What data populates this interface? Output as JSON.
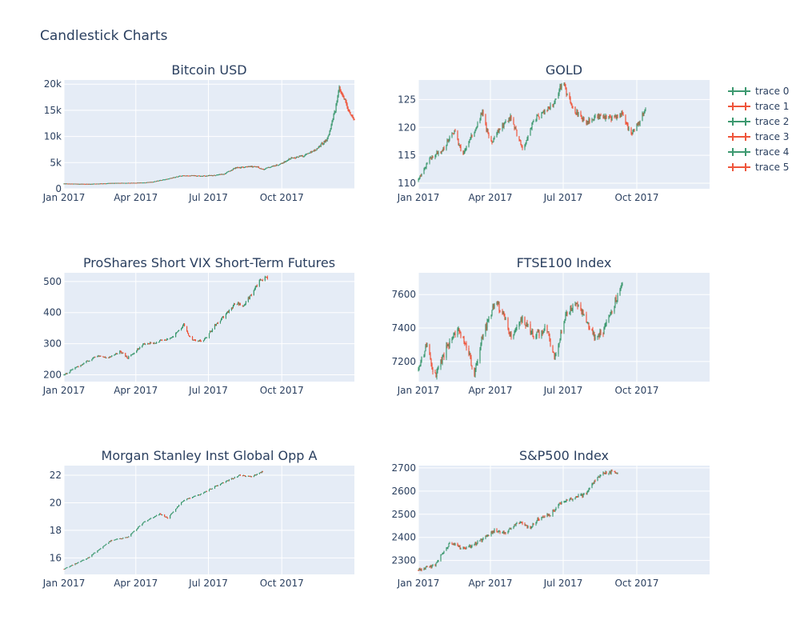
{
  "page": {
    "title": "Candlestick Charts"
  },
  "colors": {
    "increasing": "#3d9970",
    "decreasing": "#ef553b",
    "panel": "#e5ecf6",
    "text": "#2a3f5f"
  },
  "legend": {
    "position": "right",
    "items": [
      "trace 0",
      "trace 1",
      "trace 2",
      "trace 3",
      "trace 4",
      "trace 5"
    ]
  },
  "chart_data": [
    {
      "type": "candlestick",
      "title": "Bitcoin USD",
      "grid": true,
      "xticks": [
        "Jan 2017",
        "Apr 2017",
        "Jul 2017",
        "Oct 2017"
      ],
      "yticks": [
        "0",
        "5k",
        "10k",
        "15k",
        "20k"
      ],
      "ytick_values": [
        0,
        5000,
        10000,
        15000,
        20000
      ],
      "ylim": [
        0,
        20800
      ],
      "anchors": [
        [
          0,
          1000
        ],
        [
          30,
          920
        ],
        [
          60,
          1100
        ],
        [
          90,
          1150
        ],
        [
          110,
          1300
        ],
        [
          130,
          1900
        ],
        [
          150,
          2600
        ],
        [
          165,
          2500
        ],
        [
          180,
          2500
        ],
        [
          200,
          2800
        ],
        [
          215,
          4000
        ],
        [
          240,
          4300
        ],
        [
          250,
          3700
        ],
        [
          260,
          4300
        ],
        [
          270,
          4600
        ],
        [
          285,
          5900
        ],
        [
          300,
          6300
        ],
        [
          315,
          7500
        ],
        [
          330,
          9500
        ],
        [
          340,
          15000
        ],
        [
          345,
          19000
        ],
        [
          350,
          17500
        ],
        [
          360,
          13800
        ],
        [
          364,
          13400
        ]
      ],
      "volatility": 0.03
    },
    {
      "type": "candlestick",
      "title": "GOLD",
      "grid": true,
      "xticks": [
        "Jan 2017",
        "Apr 2017",
        "Jul 2017",
        "Oct 2017"
      ],
      "yticks": [
        "110",
        "115",
        "120",
        "125"
      ],
      "ytick_values": [
        110,
        115,
        120,
        125
      ],
      "ylim": [
        109,
        128.5
      ],
      "anchors": [
        [
          0,
          110.5
        ],
        [
          15,
          114.5
        ],
        [
          30,
          116
        ],
        [
          45,
          119.5
        ],
        [
          55,
          115
        ],
        [
          65,
          118
        ],
        [
          80,
          122.5
        ],
        [
          90,
          117
        ],
        [
          100,
          119.5
        ],
        [
          115,
          122
        ],
        [
          130,
          116
        ],
        [
          145,
          121.5
        ],
        [
          160,
          123
        ],
        [
          170,
          124.5
        ],
        [
          180,
          128
        ],
        [
          195,
          123
        ],
        [
          210,
          121
        ],
        [
          225,
          122
        ],
        [
          240,
          121.5
        ],
        [
          255,
          122.5
        ],
        [
          265,
          119
        ],
        [
          275,
          120.5
        ],
        [
          285,
          124
        ]
      ],
      "volatility": 0.004
    },
    {
      "type": "candlestick",
      "title": "ProShares Short VIX Short-Term Futures",
      "grid": true,
      "xticks": [
        "Jan 2017",
        "Apr 2017",
        "Jul 2017",
        "Oct 2017"
      ],
      "yticks": [
        "200",
        "300",
        "400",
        "500"
      ],
      "ytick_values": [
        200,
        300,
        400,
        500
      ],
      "ylim": [
        178,
        528
      ],
      "anchors": [
        [
          0,
          200
        ],
        [
          20,
          230
        ],
        [
          40,
          260
        ],
        [
          55,
          255
        ],
        [
          70,
          275
        ],
        [
          80,
          255
        ],
        [
          100,
          300
        ],
        [
          115,
          305
        ],
        [
          130,
          315
        ],
        [
          140,
          330
        ],
        [
          150,
          360
        ],
        [
          160,
          310
        ],
        [
          175,
          310
        ],
        [
          190,
          360
        ],
        [
          205,
          400
        ],
        [
          215,
          430
        ],
        [
          225,
          420
        ],
        [
          235,
          460
        ],
        [
          245,
          500
        ],
        [
          255,
          515
        ]
      ],
      "volatility": 0.012
    },
    {
      "type": "candlestick",
      "title": "FTSE100 Index",
      "grid": true,
      "xticks": [
        "Jan 2017",
        "Apr 2017",
        "Jul 2017",
        "Oct 2017"
      ],
      "yticks": [
        "7200",
        "7400",
        "7600"
      ],
      "ytick_values": [
        7200,
        7400,
        7600
      ],
      "ylim": [
        7080,
        7730
      ],
      "anchors": [
        [
          0,
          7150
        ],
        [
          10,
          7300
        ],
        [
          20,
          7100
        ],
        [
          35,
          7280
        ],
        [
          50,
          7380
        ],
        [
          60,
          7300
        ],
        [
          70,
          7120
        ],
        [
          80,
          7350
        ],
        [
          95,
          7550
        ],
        [
          105,
          7500
        ],
        [
          115,
          7350
        ],
        [
          130,
          7450
        ],
        [
          145,
          7350
        ],
        [
          160,
          7400
        ],
        [
          170,
          7220
        ],
        [
          185,
          7500
        ],
        [
          200,
          7550
        ],
        [
          210,
          7430
        ],
        [
          220,
          7350
        ],
        [
          230,
          7370
        ],
        [
          245,
          7550
        ],
        [
          255,
          7650
        ]
      ],
      "volatility": 0.003
    },
    {
      "type": "candlestick",
      "title": "Morgan Stanley Inst Global Opp A",
      "grid": true,
      "xticks": [
        "Jan 2017",
        "Apr 2017",
        "Jul 2017",
        "Oct 2017"
      ],
      "yticks": [
        "16",
        "18",
        "20",
        "22"
      ],
      "ytick_values": [
        16,
        18,
        20,
        22
      ],
      "ylim": [
        14.8,
        22.7
      ],
      "anchors": [
        [
          0,
          15.2
        ],
        [
          30,
          16
        ],
        [
          60,
          17.3
        ],
        [
          80,
          17.5
        ],
        [
          100,
          18.6
        ],
        [
          120,
          19.2
        ],
        [
          130,
          18.9
        ],
        [
          150,
          20.2
        ],
        [
          170,
          20.6
        ],
        [
          190,
          21.2
        ],
        [
          205,
          21.6
        ],
        [
          220,
          22
        ],
        [
          235,
          21.9
        ],
        [
          250,
          22.3
        ]
      ],
      "volatility": 0.002
    },
    {
      "type": "candlestick",
      "title": "S&P500 Index",
      "grid": true,
      "xticks": [
        "Jan 2017",
        "Apr 2017",
        "Jul 2017",
        "Oct 2017"
      ],
      "yticks": [
        "2300",
        "2400",
        "2500",
        "2600",
        "2700"
      ],
      "ytick_values": [
        2300,
        2400,
        2500,
        2600,
        2700
      ],
      "ylim": [
        2240,
        2710
      ],
      "anchors": [
        [
          0,
          2260
        ],
        [
          20,
          2280
        ],
        [
          40,
          2380
        ],
        [
          55,
          2350
        ],
        [
          65,
          2360
        ],
        [
          80,
          2390
        ],
        [
          95,
          2430
        ],
        [
          110,
          2420
        ],
        [
          125,
          2470
        ],
        [
          140,
          2440
        ],
        [
          150,
          2480
        ],
        [
          165,
          2500
        ],
        [
          180,
          2560
        ],
        [
          195,
          2570
        ],
        [
          210,
          2590
        ],
        [
          220,
          2640
        ],
        [
          230,
          2680
        ],
        [
          250,
          2680
        ]
      ],
      "volatility": 0.003
    }
  ]
}
